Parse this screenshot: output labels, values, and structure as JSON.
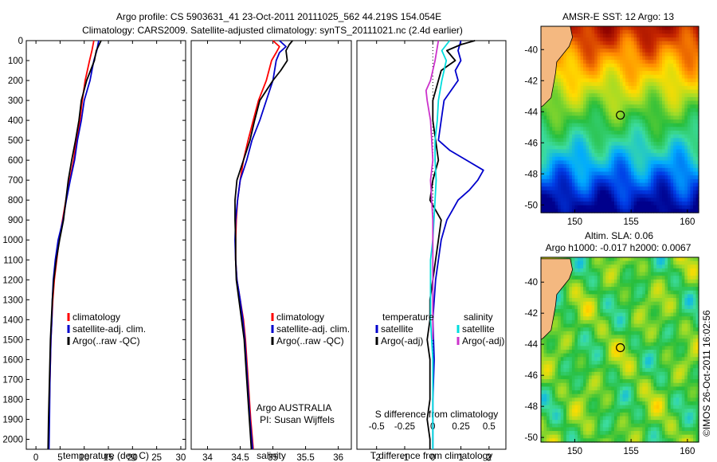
{
  "header": {
    "line1": "Argo profile: CS 5903631_41 23-Oct-2011 20111025_562 44.219S 154.054E",
    "line2": "Climatology: CARS2009. Satellite-adjusted climatology: synTS_20111021.nc (2.4d earlier)"
  },
  "colors": {
    "climatology": "#ff0000",
    "satellite": "#0000cc",
    "argo": "#000000",
    "sat_salinity": "#00dddd",
    "argo_salinity": "#cc33cc",
    "land": "#f4b880"
  },
  "chart_data": [
    {
      "type": "line",
      "id": "temperature",
      "xlabel": "temperature (deg C)",
      "xlim": [
        -2,
        31
      ],
      "ylim": [
        2050,
        0
      ],
      "xticks": [
        0,
        5,
        10,
        15,
        20,
        25,
        30
      ],
      "yticks": [
        0,
        100,
        200,
        300,
        400,
        500,
        600,
        700,
        800,
        900,
        1000,
        1100,
        1200,
        1300,
        1400,
        1500,
        1600,
        1700,
        1800,
        1900,
        2000
      ],
      "legend": [
        "climatology",
        "satellite-adj. clim.",
        "Argo(..raw -QC)"
      ],
      "series": [
        {
          "name": "climatology",
          "color": "#ff0000",
          "depth": [
            0,
            50,
            100,
            200,
            300,
            400,
            500,
            600,
            700,
            800,
            900,
            1000,
            1100,
            1200,
            1300,
            1400,
            1500,
            1700,
            1900,
            2050
          ],
          "values": [
            12,
            11.6,
            11.1,
            10.2,
            9.6,
            9.1,
            8.4,
            7.8,
            7.0,
            6.2,
            5.5,
            4.8,
            4.3,
            3.8,
            3.5,
            3.3,
            3.1,
            2.9,
            2.7,
            2.6
          ]
        },
        {
          "name": "satellite-adj. clim.",
          "color": "#0000cc",
          "depth": [
            0,
            50,
            100,
            200,
            300,
            400,
            500,
            600,
            700,
            800,
            900,
            1000,
            1100,
            1200,
            1300,
            1400,
            1500,
            1700,
            1900,
            2050
          ],
          "values": [
            13,
            12.6,
            12.0,
            11.2,
            10.0,
            9.4,
            8.6,
            8.0,
            7.1,
            6.3,
            5.6,
            4.6,
            4.0,
            3.6,
            3.4,
            3.3,
            3.1,
            2.9,
            2.8,
            2.7
          ]
        },
        {
          "name": "Argo(..raw -QC)",
          "color": "#000000",
          "depth": [
            0,
            50,
            100,
            200,
            300,
            400,
            500,
            600,
            700,
            800,
            900,
            1000,
            1100,
            1200,
            1300,
            1400,
            1500,
            1700,
            1900,
            2050
          ],
          "values": [
            13.5,
            12.5,
            12.1,
            10.5,
            9.4,
            8.9,
            8.2,
            7.4,
            6.7,
            6.2,
            5.7,
            4.9,
            4.2,
            3.7,
            3.4,
            3.2,
            3.0,
            2.8,
            2.6,
            2.5
          ]
        }
      ]
    },
    {
      "type": "line",
      "id": "salinity",
      "xlabel": "salinity",
      "xlim": [
        33.75,
        36.2
      ],
      "ylim": [
        2050,
        0
      ],
      "xticks": [
        34,
        34.5,
        35,
        35.5,
        36
      ],
      "xticklabels": [
        "34",
        "34.5",
        "35",
        "35.5",
        "36"
      ],
      "legend": [
        "climatology",
        "satellite-adj. clim.",
        "Argo(..raw -QC)"
      ],
      "annotation": [
        "Argo AUSTRALIA",
        "PI: Susan Wijffels"
      ],
      "series": [
        {
          "name": "climatology",
          "color": "#ff0000",
          "depth": [
            0,
            30,
            60,
            100,
            200,
            300,
            400,
            500,
            600,
            700,
            800,
            900,
            1000,
            1100,
            1200,
            1300,
            1400,
            1500,
            1700,
            1900,
            2050
          ],
          "values": [
            35.0,
            35.1,
            35.05,
            34.98,
            34.9,
            34.78,
            34.7,
            34.62,
            34.55,
            34.5,
            34.46,
            34.44,
            34.43,
            34.43,
            34.45,
            34.5,
            34.55,
            34.58,
            34.62,
            34.66,
            34.7
          ]
        },
        {
          "name": "satellite-adj. clim.",
          "color": "#0000cc",
          "depth": [
            0,
            30,
            60,
            100,
            200,
            300,
            400,
            500,
            600,
            700,
            800,
            900,
            1000,
            1100,
            1200,
            1300,
            1400,
            1500,
            1700,
            1900,
            2050
          ],
          "values": [
            35.1,
            35.2,
            35.1,
            35.05,
            35.0,
            34.9,
            34.8,
            34.68,
            34.6,
            34.5,
            34.46,
            34.43,
            34.42,
            34.43,
            34.45,
            34.5,
            34.54,
            34.57,
            34.61,
            34.65,
            34.69
          ]
        },
        {
          "name": "Argo(..raw -QC)",
          "color": "#000000",
          "depth": [
            0,
            20,
            50,
            100,
            150,
            200,
            300,
            400,
            500,
            600,
            700,
            800,
            900,
            1000,
            1100,
            1200,
            1300,
            1400,
            1500,
            1700,
            1900,
            2050
          ],
          "values": [
            35.3,
            35.25,
            35.2,
            35.22,
            35.12,
            35.0,
            34.8,
            34.72,
            34.65,
            34.55,
            34.45,
            34.42,
            34.42,
            34.43,
            34.43,
            34.44,
            34.48,
            34.52,
            34.56,
            34.6,
            34.64,
            34.67
          ]
        }
      ]
    },
    {
      "type": "line",
      "id": "difference",
      "xlabel": "T difference from climatology",
      "xlabel2": "S difference from climatology",
      "xlim": [
        -2.7,
        2.6
      ],
      "ylim": [
        2050,
        0
      ],
      "xticks": [
        -2,
        -1,
        0,
        1,
        2
      ],
      "sticks": [
        -0.5,
        -0.25,
        0,
        0.25,
        0.5
      ],
      "sticklabels": [
        "-0.5",
        "-0.25",
        "0",
        "0.25",
        "0.5"
      ],
      "legend_titles": [
        "temperature",
        "salinity"
      ],
      "legend": [
        "satellite",
        "Argo(-adj)",
        "satellite",
        "Argo(-adj)"
      ],
      "series": [
        {
          "name": "satellite",
          "color": "#0000cc",
          "depth": [
            0,
            50,
            100,
            150,
            200,
            300,
            400,
            500,
            550,
            600,
            650,
            700,
            750,
            800,
            850,
            900,
            1000,
            1100,
            1200,
            1400,
            1600,
            1800,
            2000,
            2050
          ],
          "values": [
            1.0,
            0.9,
            1.0,
            0.8,
            0.9,
            0.4,
            0.3,
            0.2,
            0.6,
            1.2,
            1.8,
            1.6,
            1.3,
            0.9,
            0.7,
            0.5,
            0.3,
            0.2,
            0.1,
            0.0,
            0.05,
            0.0,
            0.0,
            0.0
          ]
        },
        {
          "name": "Argo(-adj)",
          "color": "#000000",
          "depth": [
            0,
            20,
            50,
            100,
            150,
            200,
            300,
            400,
            500,
            600,
            700,
            800,
            900,
            1000,
            1100,
            1200,
            1300,
            1400,
            1500,
            1600,
            1800,
            1900,
            2000,
            2050
          ],
          "values": [
            1.5,
            1.0,
            0.5,
            0.8,
            0.3,
            0.2,
            0.0,
            0.0,
            0.1,
            0.2,
            0.0,
            -0.1,
            0.3,
            0.2,
            0.1,
            0.0,
            -0.1,
            -0.1,
            -0.2,
            -0.1,
            -0.1,
            -0.2,
            -0.1,
            -0.1
          ]
        },
        {
          "name": "satellite",
          "color": "#00dddd",
          "depth": [
            0,
            50,
            100,
            200,
            300,
            400,
            500,
            600,
            700,
            800,
            900,
            1000,
            1100,
            1200,
            1400,
            1600,
            1800,
            2000,
            2050
          ],
          "values": [
            0.15,
            0.08,
            0.12,
            0.08,
            0.05,
            0.04,
            0.02,
            0.02,
            0.03,
            0.02,
            0.01,
            0.0,
            -0.02,
            -0.02,
            -0.02,
            0.0,
            0.0,
            0.0,
            0.0
          ]
        },
        {
          "name": "Argo(-adj)",
          "color": "#cc33cc",
          "depth": [
            0,
            100,
            200,
            250,
            300,
            400,
            500,
            600,
            700,
            800,
            900,
            1000,
            1100,
            1200,
            1300,
            1400,
            1500
          ],
          "values": [
            0.05,
            0.02,
            -0.02,
            -0.06,
            -0.05,
            -0.02,
            -0.01,
            0.0,
            -0.02,
            -0.01,
            0.0,
            0.0,
            0.0,
            0.0,
            0.0,
            0.0,
            0.0
          ]
        }
      ]
    },
    {
      "type": "heatmap",
      "id": "sst-map",
      "title": "AMSR-E SST: 12 Argo: 13",
      "xlim": [
        147,
        161
      ],
      "ylim": [
        -50.5,
        -38.5
      ],
      "xticks": [
        150,
        155,
        160
      ],
      "yticks": [
        -40,
        -42,
        -44,
        -46,
        -48,
        -50
      ],
      "profile_location": {
        "lon": 154.05,
        "lat": -44.22
      }
    },
    {
      "type": "heatmap",
      "id": "sla-map",
      "title": "Altim. SLA: 0.06",
      "subtitle": "Argo h1000: -0.017 h2000: 0.0067",
      "xlim": [
        147,
        161
      ],
      "ylim": [
        -50.3,
        -38.4
      ],
      "xticks": [
        150,
        155,
        160
      ],
      "yticks": [
        -40,
        -42,
        -44,
        -46,
        -48,
        -50
      ],
      "profile_location": {
        "lon": 154.05,
        "lat": -44.22
      }
    }
  ],
  "footer": {
    "credit": "©IMOS 26-Oct-2011 16:02:56"
  }
}
